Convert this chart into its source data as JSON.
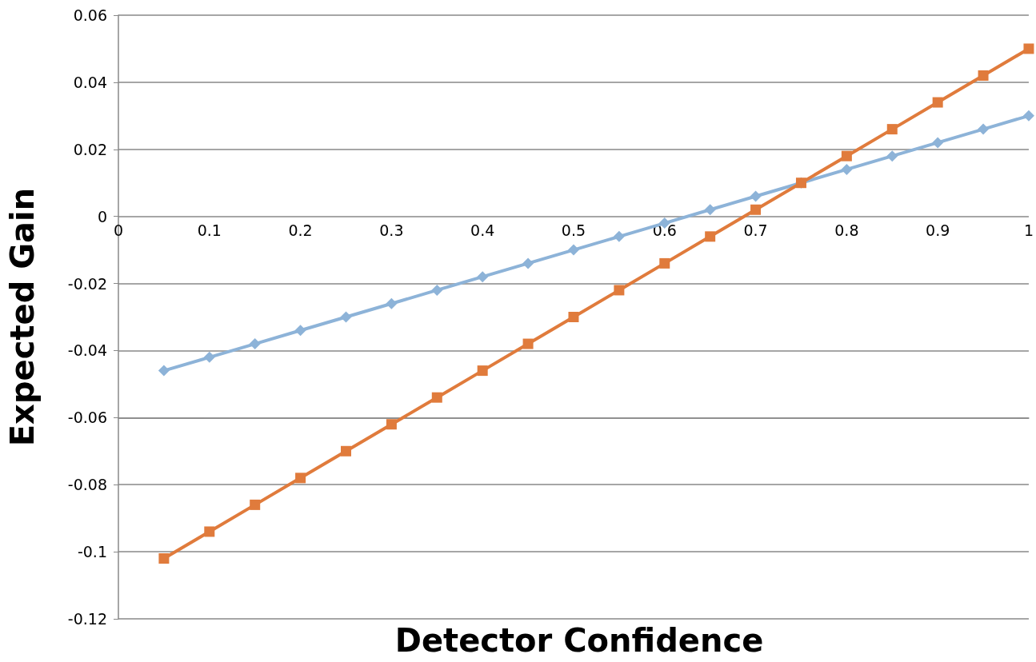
{
  "chart_data": {
    "type": "line",
    "xlabel": "Detector Confidence",
    "ylabel": "Expected Gain",
    "x": [
      0.05,
      0.1,
      0.15,
      0.2,
      0.25,
      0.3,
      0.35,
      0.4,
      0.45,
      0.5,
      0.55,
      0.6,
      0.65,
      0.7,
      0.75,
      0.8,
      0.85,
      0.9,
      0.95,
      1
    ],
    "series": [
      {
        "color": "#8db3d8",
        "marker": "diamond",
        "values": [
          -0.046,
          -0.042,
          -0.038,
          -0.034,
          -0.03,
          -0.026,
          -0.022,
          -0.018,
          -0.014,
          -0.01,
          -0.006,
          -0.002,
          0.002,
          0.006,
          0.01,
          0.014,
          0.018,
          0.022,
          0.026,
          0.03
        ]
      },
      {
        "color": "#e07b3c",
        "marker": "square",
        "values": [
          -0.102,
          -0.094,
          -0.086,
          -0.078,
          -0.07,
          -0.062,
          -0.054,
          -0.046,
          -0.038,
          -0.03,
          -0.022,
          -0.014,
          -0.006,
          0.002,
          0.01,
          0.018,
          0.026,
          0.034,
          0.042,
          0.05
        ]
      }
    ],
    "xlim": [
      0,
      1
    ],
    "xticks": [
      0,
      0.1,
      0.2,
      0.3,
      0.4,
      0.5,
      0.6,
      0.7,
      0.8,
      0.9,
      1
    ],
    "ylim": [
      -0.12,
      0.06
    ],
    "yticks": [
      -0.12,
      -0.1,
      -0.08,
      -0.06,
      -0.04,
      -0.02,
      0,
      0.02,
      0.04,
      0.06
    ],
    "grid": "y",
    "line_style": "solid"
  }
}
